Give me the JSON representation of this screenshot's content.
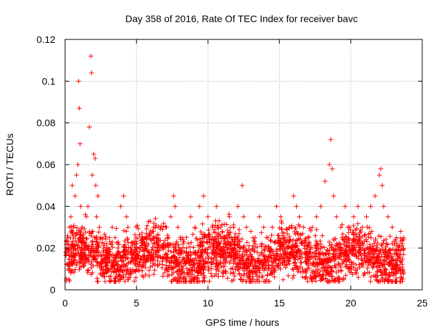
{
  "chart_data": {
    "type": "scatter",
    "title": "Day 358 of 2016, Rate Of TEC Index for receiver bavc",
    "xlabel": "GPS time / hours",
    "ylabel": "ROTI / TECUs",
    "xlim": [
      0,
      25
    ],
    "ylim": [
      0,
      0.12
    ],
    "xticks": [
      0,
      5,
      10,
      15,
      20,
      25
    ],
    "xtick_labels": [
      "0",
      "5",
      "10",
      "15",
      "20",
      "25"
    ],
    "yticks": [
      0,
      0.02,
      0.04,
      0.06,
      0.08,
      0.1,
      0.12
    ],
    "ytick_labels": [
      "0",
      "0.02",
      "0.04",
      "0.06",
      "0.08",
      "0.1",
      "0.12"
    ],
    "grid": true,
    "marker": "+",
    "color": "#ff0000",
    "series": [
      {
        "name": "ROTI",
        "x": [
          0.1,
          0.2,
          0.3,
          0.4,
          0.5,
          0.6,
          0.7,
          0.8,
          0.9,
          0.95,
          1.0,
          1.05,
          1.1,
          1.2,
          1.3,
          1.4,
          1.5,
          1.6,
          1.7,
          1.8,
          1.85,
          1.9,
          2.0,
          2.1,
          2.15,
          2.2,
          2.3,
          2.4,
          2.5,
          2.7,
          2.9,
          3.1,
          3.3,
          3.5,
          3.7,
          3.9,
          4.1,
          4.3,
          4.4,
          4.6,
          4.8,
          5.0,
          5.3,
          5.6,
          5.9,
          6.2,
          6.5,
          6.8,
          7.1,
          7.4,
          7.6,
          7.7,
          7.9,
          8.2,
          8.5,
          8.8,
          9.1,
          9.4,
          9.7,
          10.0,
          10.3,
          10.6,
          10.9,
          11.2,
          11.5,
          11.8,
          12.1,
          12.4,
          12.5,
          12.7,
          13.0,
          13.3,
          13.6,
          13.9,
          14.2,
          14.5,
          14.8,
          15.1,
          15.4,
          15.7,
          16.0,
          16.2,
          16.4,
          16.7,
          17.0,
          17.3,
          17.6,
          17.9,
          18.2,
          18.5,
          18.6,
          18.7,
          18.8,
          19.0,
          19.3,
          19.6,
          19.9,
          20.2,
          20.5,
          20.8,
          21.1,
          21.4,
          21.7,
          22.0,
          22.1,
          22.2,
          22.3,
          22.6,
          22.9,
          23.2,
          23.5,
          23.7
        ],
        "y": [
          0.02,
          0.025,
          0.03,
          0.035,
          0.05,
          0.03,
          0.045,
          0.055,
          0.06,
          0.1,
          0.087,
          0.07,
          0.04,
          0.03,
          0.025,
          0.02,
          0.035,
          0.04,
          0.078,
          0.112,
          0.104,
          0.055,
          0.065,
          0.063,
          0.05,
          0.035,
          0.045,
          0.03,
          0.025,
          0.02,
          0.022,
          0.025,
          0.03,
          0.025,
          0.02,
          0.04,
          0.045,
          0.035,
          0.03,
          0.02,
          0.018,
          0.015,
          0.02,
          0.025,
          0.018,
          0.03,
          0.025,
          0.02,
          0.03,
          0.035,
          0.045,
          0.04,
          0.03,
          0.025,
          0.02,
          0.035,
          0.03,
          0.04,
          0.045,
          0.035,
          0.03,
          0.04,
          0.03,
          0.025,
          0.035,
          0.03,
          0.04,
          0.05,
          0.035,
          0.03,
          0.028,
          0.025,
          0.035,
          0.03,
          0.025,
          0.03,
          0.04,
          0.035,
          0.025,
          0.03,
          0.045,
          0.04,
          0.035,
          0.03,
          0.025,
          0.03,
          0.035,
          0.04,
          0.052,
          0.06,
          0.072,
          0.058,
          0.045,
          0.035,
          0.03,
          0.04,
          0.03,
          0.035,
          0.04,
          0.03,
          0.035,
          0.04,
          0.045,
          0.055,
          0.058,
          0.05,
          0.04,
          0.035,
          0.03,
          0.025,
          0.028,
          0.025
        ]
      }
    ]
  }
}
